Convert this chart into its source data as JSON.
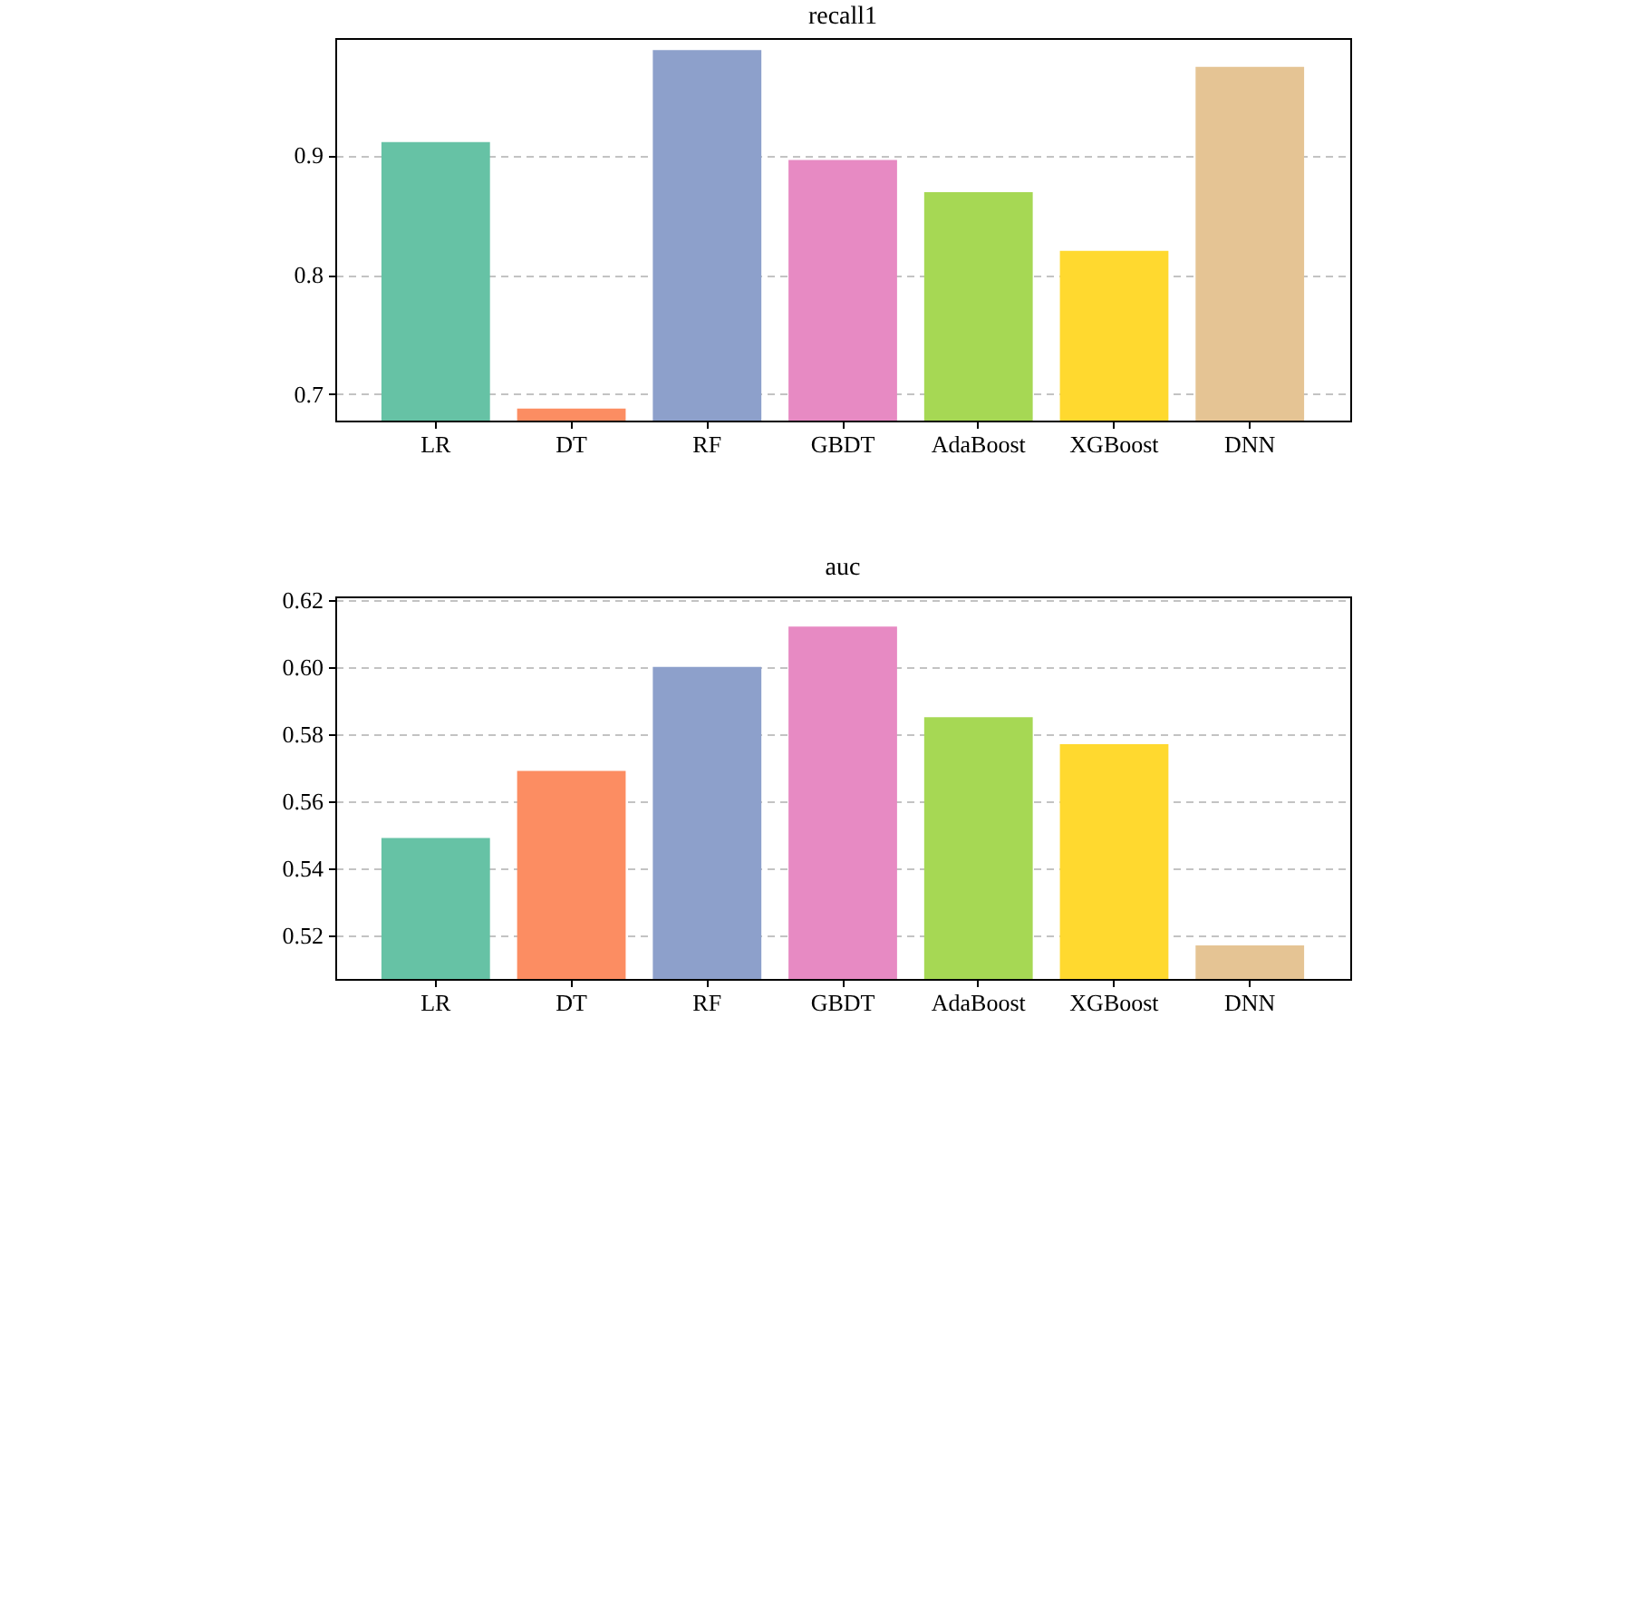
{
  "chart_data": [
    {
      "type": "bar",
      "title": "recall1",
      "categories": [
        "LR",
        "DT",
        "RF",
        "GBDT",
        "AdaBoost",
        "XGBoost",
        "DNN"
      ],
      "values": [
        0.911,
        0.688,
        0.988,
        0.896,
        0.869,
        0.82,
        0.974
      ],
      "colors": [
        "#66c2a5",
        "#fc8d62",
        "#8da0cb",
        "#e78ac3",
        "#a6d854",
        "#ffd92f",
        "#e5c494"
      ],
      "ylim": [
        0.678,
        0.998
      ],
      "yticks": [
        0.7,
        0.8,
        0.9
      ],
      "grid": "y"
    },
    {
      "type": "bar",
      "title": "auc",
      "categories": [
        "LR",
        "DT",
        "RF",
        "GBDT",
        "AdaBoost",
        "XGBoost",
        "DNN"
      ],
      "values": [
        0.549,
        0.569,
        0.6,
        0.612,
        0.585,
        0.577,
        0.517
      ],
      "colors": [
        "#66c2a5",
        "#fc8d62",
        "#8da0cb",
        "#e78ac3",
        "#a6d854",
        "#ffd92f",
        "#e5c494"
      ],
      "ylim": [
        0.507,
        0.621
      ],
      "yticks": [
        0.52,
        0.54,
        0.56,
        0.58,
        {
          "value": 0.6,
          "label": "0.60"
        },
        0.62
      ],
      "grid": "y"
    }
  ]
}
